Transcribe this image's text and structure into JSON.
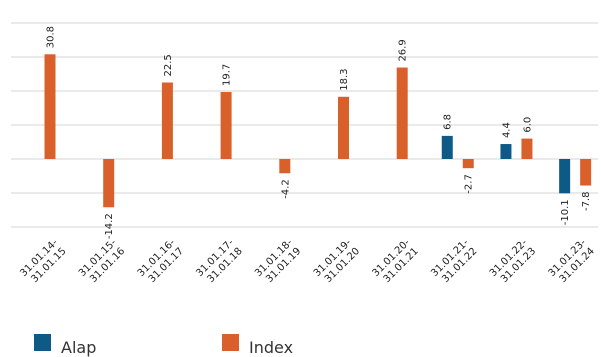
{
  "chart_data": {
    "type": "bar",
    "title": "",
    "xlabel": "",
    "ylabel": "",
    "ylim": [
      -20,
      40
    ],
    "grid": true,
    "legend_position": "bottom-left",
    "categories": [
      "31.01.14-31.01.15",
      "31.01.15-31.01.16",
      "31.01.16-31.01.17",
      "31.01.17-31.01.18",
      "31.01.18-31.01.19",
      "31.01.19-31.01.20",
      "31.01.20-31.01.21",
      "31.01.21-31.01.22",
      "31.01.22-31.01.23",
      "31.01.23-31.01.24"
    ],
    "series": [
      {
        "name": "Alap",
        "color": "#0d5a86",
        "values": [
          null,
          null,
          null,
          null,
          null,
          null,
          null,
          6.8,
          4.4,
          -10.1
        ],
        "labels": [
          "",
          "",
          "",
          "",
          "",
          "",
          "",
          "6.8",
          "4.4",
          "-10.1"
        ]
      },
      {
        "name": "Index",
        "color": "#d9602b",
        "values": [
          30.8,
          -14.2,
          22.5,
          19.7,
          -4.2,
          18.3,
          26.9,
          -2.7,
          6.0,
          -7.8
        ],
        "labels": [
          "30.8",
          "-14.2",
          "22.5",
          "19.7",
          "-4.2",
          "18.3",
          "26.9",
          "-2.7",
          "6.0",
          "-7.8"
        ]
      }
    ]
  }
}
